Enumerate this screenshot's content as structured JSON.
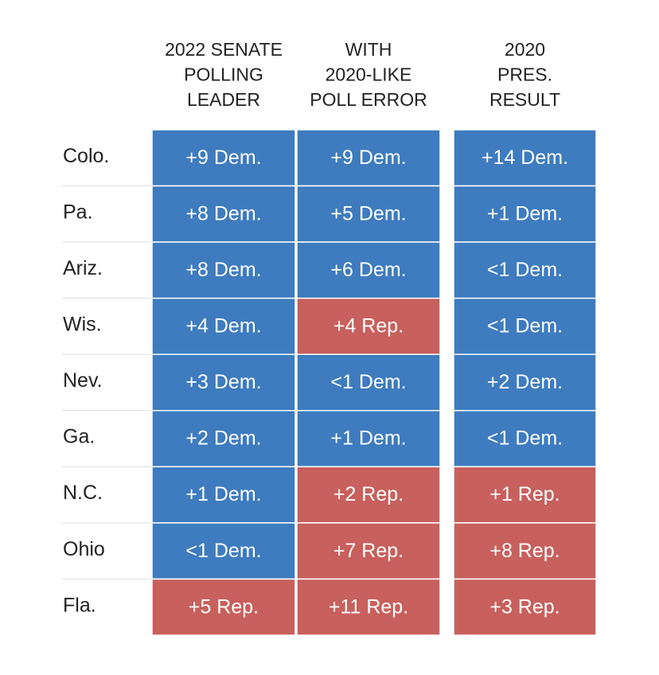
{
  "table": {
    "columns": [
      {
        "lines": [
          "2022 SENATE",
          "POLLING",
          "LEADER"
        ]
      },
      {
        "lines": [
          "WITH",
          "2020-LIKE",
          "POLL ERROR"
        ]
      },
      {
        "lines": [
          "2020",
          "PRES.",
          "RESULT"
        ]
      }
    ],
    "rows": [
      {
        "state": "Colo.",
        "cells": [
          {
            "text": "+9 Dem.",
            "color": "#3e7cbf"
          },
          {
            "text": "+9 Dem.",
            "color": "#3e7cbf"
          },
          {
            "text": "+14 Dem.",
            "color": "#3e7cbf"
          }
        ]
      },
      {
        "state": "Pa.",
        "cells": [
          {
            "text": "+8 Dem.",
            "color": "#3e7cbf"
          },
          {
            "text": "+5 Dem.",
            "color": "#3e7cbf"
          },
          {
            "text": "+1 Dem.",
            "color": "#3e7cbf"
          }
        ]
      },
      {
        "state": "Ariz.",
        "cells": [
          {
            "text": "+8 Dem.",
            "color": "#3e7cbf"
          },
          {
            "text": "+6 Dem.",
            "color": "#3e7cbf"
          },
          {
            "text": "<1 Dem.",
            "color": "#3e7cbf"
          }
        ]
      },
      {
        "state": "Wis.",
        "cells": [
          {
            "text": "+4 Dem.",
            "color": "#3e7cbf"
          },
          {
            "text": "+4 Rep.",
            "color": "#c8605d"
          },
          {
            "text": "<1 Dem.",
            "color": "#3e7cbf"
          }
        ]
      },
      {
        "state": "Nev.",
        "cells": [
          {
            "text": "+3 Dem.",
            "color": "#3e7cbf"
          },
          {
            "text": "<1 Dem.",
            "color": "#3e7cbf"
          },
          {
            "text": "+2 Dem.",
            "color": "#3e7cbf"
          }
        ]
      },
      {
        "state": "Ga.",
        "cells": [
          {
            "text": "+2 Dem.",
            "color": "#3e7cbf"
          },
          {
            "text": "+1 Dem.",
            "color": "#3e7cbf"
          },
          {
            "text": "<1 Dem.",
            "color": "#3e7cbf"
          }
        ]
      },
      {
        "state": "N.C.",
        "cells": [
          {
            "text": "+1 Dem.",
            "color": "#3e7cbf"
          },
          {
            "text": "+2 Rep.",
            "color": "#c8605d"
          },
          {
            "text": "+1 Rep.",
            "color": "#c8605d"
          }
        ]
      },
      {
        "state": "Ohio",
        "cells": [
          {
            "text": "<1 Dem.",
            "color": "#3e7cbf"
          },
          {
            "text": "+7 Rep.",
            "color": "#c8605d"
          },
          {
            "text": "+8 Rep.",
            "color": "#c8605d"
          }
        ]
      },
      {
        "state": "Fla.",
        "cells": [
          {
            "text": "+5 Rep.",
            "color": "#c8605d"
          },
          {
            "text": "+11 Rep.",
            "color": "#c8605d"
          },
          {
            "text": "+3 Rep.",
            "color": "#c8605d"
          }
        ]
      }
    ]
  }
}
